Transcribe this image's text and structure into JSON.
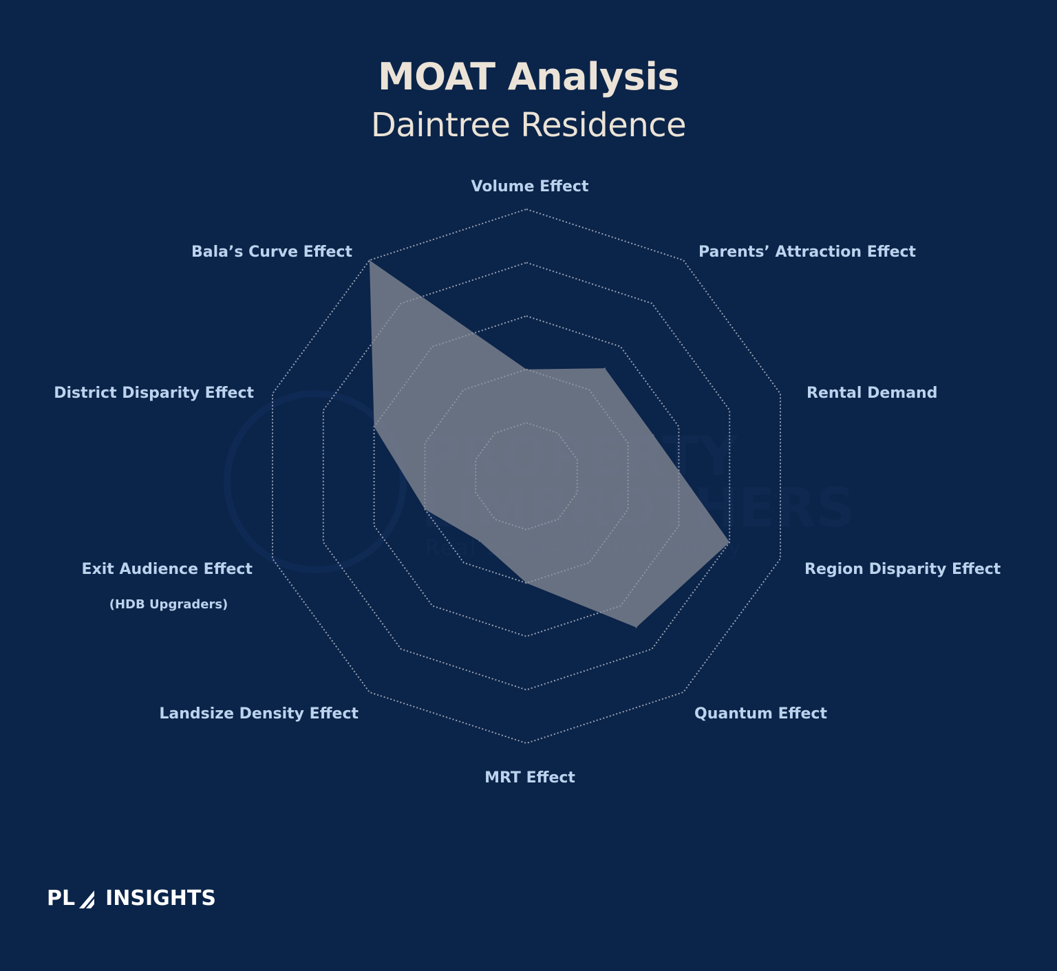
{
  "header": {
    "title": "MOAT Analysis",
    "subtitle": "Daintree Residence"
  },
  "colors": {
    "background": "#0b2449",
    "polygon_fill": "#8c8f99",
    "grid": "#c9cfdc",
    "label": "#bcd3ee",
    "title": "#ebe3d7"
  },
  "chart_data": {
    "type": "radar",
    "title": "MOAT Analysis",
    "subtitle": "Daintree Residence",
    "axes": [
      {
        "label": "Volume Effect",
        "sublabel": ""
      },
      {
        "label": "Parents’ Attraction Effect",
        "sublabel": ""
      },
      {
        "label": "Rental Demand",
        "sublabel": ""
      },
      {
        "label": "Region Disparity Effect",
        "sublabel": ""
      },
      {
        "label": "Quantum Effect",
        "sublabel": ""
      },
      {
        "label": "MRT Effect",
        "sublabel": ""
      },
      {
        "label": "Landsize Density Effect",
        "sublabel": ""
      },
      {
        "label": "Exit Audience Effect",
        "sublabel": "(HDB Upgraders)"
      },
      {
        "label": "District Disparity Effect",
        "sublabel": ""
      },
      {
        "label": "Bala’s Curve Effect",
        "sublabel": ""
      }
    ],
    "values": [
      4,
      5,
      5,
      8,
      7,
      4,
      3,
      4,
      6,
      10
    ],
    "range": [
      0,
      10
    ],
    "rings": 5,
    "grid": true,
    "legend": "none"
  },
  "watermark": {
    "line1": "PROPERTY",
    "line2": "LIMBROTHERS",
    "line3": "Real Estate With Integrity"
  },
  "brand": {
    "left": "PL",
    "right": "INSIGHTS"
  }
}
